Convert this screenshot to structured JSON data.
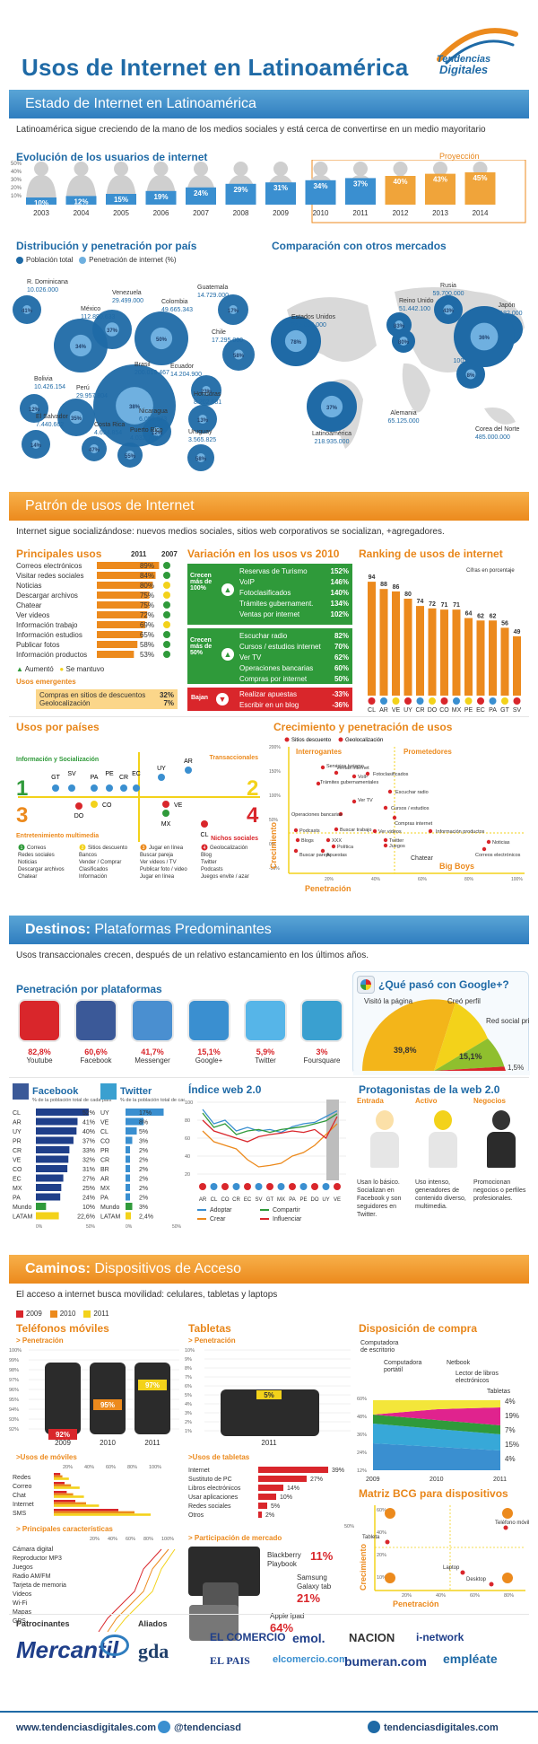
{
  "header": {
    "title_part1": "Usos de Internet en Latinoamérica",
    "brand_line1": "Tendencias",
    "brand_line2": "Digitales"
  },
  "section1": {
    "banner": "Estado de Internet en Latinoamérica",
    "subtitle": "Latinoamérica sigue creciendo de la mano de los medios sociales y está cerca de convertirse en un medio mayoritario",
    "evolution_title": "Evolución de los usuarios de internet",
    "projection_label": "Proyección",
    "evolution_y_ticks": [
      "50%",
      "40%",
      "30%",
      "20%",
      "10%"
    ],
    "distribution_title": "Distribución y penetración por país",
    "legend_population": "Población total",
    "legend_penetration": "Penetración de internet (%)",
    "comparison_title": "Comparación con otros mercados"
  },
  "chart_data": [
    {
      "type": "bar",
      "title": "Evolución de los usuarios de internet",
      "categories": [
        "2003",
        "2004",
        "2005",
        "2006",
        "2007",
        "2008",
        "2009",
        "2010",
        "2011",
        "2012",
        "2013",
        "2014"
      ],
      "values": [
        10,
        12,
        15,
        19,
        24,
        29,
        31,
        34,
        37,
        40,
        43,
        45
      ],
      "labels": [
        "10%",
        "12%",
        "15%",
        "19%",
        "24%",
        "29%",
        "31%",
        "34%",
        "37%",
        "40%",
        "43%",
        "45%"
      ],
      "projected_from": "2012",
      "ylim": [
        0,
        50
      ]
    },
    {
      "type": "scatter",
      "title": "Distribución y penetración por país",
      "countries": [
        {
          "name": "R. Dominicana",
          "population": "10.026.000",
          "penetration": "41%"
        },
        {
          "name": "México",
          "population": "112.890.633",
          "penetration": "34%"
        },
        {
          "name": "Venezuela",
          "population": "29.499.000",
          "penetration": "37%"
        },
        {
          "name": "Colombia",
          "population": "49.665.343",
          "penetration": "50%"
        },
        {
          "name": "Guatemala",
          "population": "14.729.000",
          "penetration": "17%"
        },
        {
          "name": "Chile",
          "population": "17.295.000",
          "penetration": "58%"
        },
        {
          "name": "Brasil",
          "population": "200.019.467",
          "penetration": "38%"
        },
        {
          "name": "Ecuador",
          "population": "14.204.900",
          "penetration": "23%"
        },
        {
          "name": "Bolivia",
          "population": "10.426.154",
          "penetration": "12%"
        },
        {
          "name": "Perú",
          "population": "29.957.804",
          "penetration": "35%"
        },
        {
          "name": "Honduras",
          "population": "8.202.681",
          "penetration": "13%"
        },
        {
          "name": "Nicaragua",
          "population": "6.050.373",
          "penetration": "12%"
        },
        {
          "name": "El Salvador",
          "population": "7.440.662",
          "penetration": "14%"
        },
        {
          "name": "Costa Rica",
          "population": "4.694.854",
          "penetration": "47%"
        },
        {
          "name": "Puerto Rico",
          "population": "4.032.707",
          "penetration": "55%"
        },
        {
          "name": "Uruguay",
          "population": "3.565.825",
          "penetration": "58%"
        }
      ]
    },
    {
      "type": "scatter",
      "title": "Comparación con otros mercados",
      "markets": [
        {
          "name": "Estados Unidos",
          "population": "245.000.000",
          "penetration": "78%"
        },
        {
          "name": "Reino Unido",
          "population": "51.442.100",
          "penetration": "83%"
        },
        {
          "name": "Rusia",
          "population": "59.700.000",
          "penetration": "43%"
        },
        {
          "name": "Japón",
          "population": "99.182.000",
          "penetration": "78%"
        },
        {
          "name": "Alemania",
          "population": "65.125.000",
          "penetration": "80%"
        },
        {
          "name": "India",
          "population": "100.000.000",
          "penetration": "8%"
        },
        {
          "name": "Corea del Norte",
          "population": "485.000.000",
          "penetration": "36%"
        },
        {
          "name": "Latinoamérica",
          "population": "218.935.000",
          "penetration": "37%"
        }
      ]
    },
    {
      "type": "bar",
      "title": "Principales usos",
      "categories": [
        "Correos electrónicos",
        "Visitar redes sociales",
        "Noticias",
        "Descargar archivos",
        "Chatear",
        "Ver videos",
        "Información trabajo",
        "Información estudios",
        "Publicar fotos",
        "Información productos"
      ],
      "values": [
        89,
        84,
        80,
        75,
        75,
        72,
        69,
        65,
        58,
        53
      ],
      "labels": [
        "89%",
        "84%",
        "80%",
        "75%",
        "75%",
        "72%",
        "69%",
        "65%",
        "58%",
        "53%"
      ],
      "xlim": [
        0,
        100
      ]
    },
    {
      "type": "bar",
      "title": "Ranking de usos de internet",
      "categories": [
        "CL",
        "AR",
        "VE",
        "UY",
        "CR",
        "DO",
        "CO",
        "MX",
        "PE",
        "EC",
        "PA",
        "GT",
        "SV"
      ],
      "values": [
        94,
        88,
        86,
        80,
        74,
        72,
        71,
        71,
        64,
        62,
        62,
        56,
        49
      ],
      "ylim": [
        0,
        100
      ]
    },
    {
      "type": "bar",
      "title": "Penetración de teléfonos móviles",
      "categories": [
        "2009",
        "2010",
        "2011"
      ],
      "values": [
        92,
        95,
        97
      ],
      "labels": [
        "92%",
        "95%",
        "97%"
      ],
      "ylim": [
        92,
        100
      ]
    },
    {
      "type": "bar",
      "title": "Usos de tabletas",
      "categories": [
        "Internet",
        "Sustituto de PC",
        "Libros electrónicos",
        "Usar aplicaciones",
        "Redes sociales",
        "Otros"
      ],
      "values": [
        39,
        27,
        14,
        10,
        5,
        2
      ],
      "labels": [
        "39%",
        "27%",
        "14%",
        "10%",
        "5%",
        "2%"
      ],
      "xlim": [
        0,
        50
      ]
    },
    {
      "type": "pie",
      "title": "¿Qué pasó con Google+?",
      "categories": [
        "Visitó la página",
        "Creó perfil",
        "Red social principal"
      ],
      "values": [
        39.8,
        15.1,
        1.5
      ],
      "labels": [
        "39,8%",
        "15,1%",
        "1,5%"
      ]
    }
  ],
  "section2": {
    "banner": "Patrón de usos de Internet",
    "subtitle": "Internet sigue socializándose: nuevos medios sociales, sitios web corporativos se socializan, +agregadores.",
    "main_uses_title": "Principales usos",
    "year_a": "2011",
    "year_b": "2007",
    "legend_up": "Aumentó",
    "legend_same": "Se mantuvo",
    "emerging_title": "Usos emergentes",
    "emerging": [
      {
        "label": "Compras en sitios de descuentos",
        "value": "32%"
      },
      {
        "label": "Geolocalización",
        "value": "7%"
      }
    ],
    "variation_title": "Variación en los usos vs 2010",
    "growth100_label": "Crecen más de 100%",
    "growth100": [
      {
        "label": "Reservas de Turismo",
        "value": "152%"
      },
      {
        "label": "VoIP",
        "value": "146%"
      },
      {
        "label": "Fotoclasificados",
        "value": "140%"
      },
      {
        "label": "Trámites gubernament.",
        "value": "134%"
      },
      {
        "label": "Ventas por internet",
        "value": "102%"
      }
    ],
    "growth50_label": "Crecen más de 50%",
    "growth50": [
      {
        "label": "Escuchar radio",
        "value": "82%"
      },
      {
        "label": "Cursos / estudios internet",
        "value": "70%"
      },
      {
        "label": "Ver TV",
        "value": "62%"
      },
      {
        "label": "Operaciones bancarias",
        "value": "60%"
      },
      {
        "label": "Compras por internet",
        "value": "50%"
      }
    ],
    "down_label": "Bajan",
    "down": [
      {
        "label": "Realizar apuestas",
        "value": "-33%"
      },
      {
        "label": "Escribir en un blog",
        "value": "-36%"
      }
    ],
    "ranking_title": "Ranking de usos de internet",
    "ranking_note": "Cifras en porcentaje",
    "countries_title": "Usos por países",
    "quad_info": "Información y Socialización",
    "quad_trans": "Transaccionales",
    "quad_ent": "Entretenimiento multimedia",
    "quad_niche": "Nichos sociales",
    "q1": [
      "GT",
      "SV",
      "PA",
      "PE",
      "CR",
      "EC"
    ],
    "q1_extra": [
      "UY",
      "AR"
    ],
    "q3": [
      "DO",
      "CO"
    ],
    "q4": [
      "VE",
      "MX",
      "CL"
    ],
    "q_lists": [
      {
        "num": "1",
        "items": [
          "Correos",
          "Redes sociales",
          "Noticias",
          "Descargar archivos",
          "Chatear"
        ]
      },
      {
        "num": "2",
        "items": [
          "Sitios descuento",
          "Bancos",
          "Vender / Comprar",
          "Clasificados",
          "Información"
        ]
      },
      {
        "num": "3",
        "items": [
          "Jugar en línea",
          "Buscar pareja",
          "Ver videos / TV",
          "Publicar foto / video",
          "Jugar en línea"
        ]
      },
      {
        "num": "4",
        "items": [
          "Geolocalización",
          "Blog",
          "Twitter",
          "Podcasts",
          "Juegos envite / azar"
        ]
      }
    ],
    "growth_pen_title": "Crecimiento y penetración de usos",
    "legend_sitios": "Sitios descuento",
    "legend_geo": "Geolocalización",
    "interrogantes": "Interrogantes",
    "prometedores": "Prometedores",
    "chatear": "Chatear",
    "big_boys": "Big Boys",
    "axis_growth": "Crecimiento",
    "axis_pen": "Penetración",
    "bubbles": [
      "Servicios turismo",
      "Ventas internet",
      "VoIP",
      "Fotoclasificados",
      "Trámites gubernamentales",
      "Escuchar radio",
      "Ver TV",
      "Cursos / estudios",
      "Operaciones bancarias",
      "Compras internet",
      "Podcasts",
      "Buscar trabajo",
      "Ver videos",
      "Información productos",
      "Blogs",
      "XXX",
      "Política",
      "Twitter",
      "Juegos",
      "Noticias",
      "Correos electrónicos",
      "Buscar pareja",
      "Apuestas"
    ],
    "y_ticks": [
      "200%",
      "150%",
      "100%",
      "50%",
      "0%",
      "-50%"
    ],
    "x_ticks": [
      "20%",
      "40%",
      "60%",
      "80%",
      "100%"
    ]
  },
  "section3": {
    "banner_bold": "Destinos:",
    "banner_rest": "Plataformas Predominantes",
    "subtitle": "Usos transaccionales crecen, después de un relativo estancamiento en los últimos años.",
    "platforms_title": "Penetración por plataformas",
    "platforms": [
      {
        "name": "Youtube",
        "value": "82,8%",
        "icon": "youtube-icon"
      },
      {
        "name": "Facebook",
        "value": "60,6%",
        "icon": "facebook-icon"
      },
      {
        "name": "Messenger",
        "value": "41,7%",
        "icon": "messenger-icon"
      },
      {
        "name": "Google+",
        "value": "15,1%",
        "icon": "google-plus-icon"
      },
      {
        "name": "Twitter",
        "value": "5,9%",
        "icon": "twitter-icon"
      },
      {
        "name": "Foursquare",
        "value": "3%",
        "icon": "foursquare-icon"
      }
    ],
    "google_title": "¿Qué pasó con Google+?",
    "google_visited": "Visitó la página",
    "google_profile": "Creó perfil",
    "google_main": "Red social principal",
    "fb_title": "Facebook",
    "fb_sub": "% de la población total de cada país",
    "fb_rows": [
      {
        "c": "CL",
        "v": "52%",
        "n": 52
      },
      {
        "c": "AR",
        "v": "41%",
        "n": 41
      },
      {
        "c": "UY",
        "v": "40%",
        "n": 40
      },
      {
        "c": "PR",
        "v": "37%",
        "n": 37
      },
      {
        "c": "CR",
        "v": "33%",
        "n": 33
      },
      {
        "c": "VE",
        "v": "32%",
        "n": 32
      },
      {
        "c": "CO",
        "v": "31%",
        "n": 31
      },
      {
        "c": "EC",
        "v": "27%",
        "n": 27
      },
      {
        "c": "MX",
        "v": "25%",
        "n": 25
      },
      {
        "c": "PA",
        "v": "24%",
        "n": 24
      },
      {
        "c": "Mundo",
        "v": "10%",
        "n": 10
      },
      {
        "c": "LATAM",
        "v": "22,6%",
        "n": 22.6
      }
    ],
    "tw_title": "Twitter",
    "tw_sub": "% de la población total de cada país",
    "tw_rows": [
      {
        "c": "UY",
        "v": "17%",
        "n": 17
      },
      {
        "c": "VE",
        "v": "8%",
        "n": 8
      },
      {
        "c": "CL",
        "v": "5%",
        "n": 5
      },
      {
        "c": "CO",
        "v": "3%",
        "n": 3
      },
      {
        "c": "PR",
        "v": "2%",
        "n": 2
      },
      {
        "c": "CR",
        "v": "2%",
        "n": 2
      },
      {
        "c": "BR",
        "v": "2%",
        "n": 2
      },
      {
        "c": "AR",
        "v": "2%",
        "n": 2
      },
      {
        "c": "MX",
        "v": "2%",
        "n": 2
      },
      {
        "c": "PA",
        "v": "2%",
        "n": 2
      },
      {
        "c": "Mundo",
        "v": "3%",
        "n": 3
      },
      {
        "c": "LATAM",
        "v": "2,4%",
        "n": 2.4
      }
    ],
    "axis_0": "0%",
    "axis_50": "50%",
    "web20_title": "Índice web 2.0",
    "web20_countries": [
      "AR",
      "CL",
      "CO",
      "CR",
      "EC",
      "SV",
      "GT",
      "MX",
      "PA",
      "PE",
      "DO",
      "UY",
      "VE"
    ],
    "web20_y": [
      "100",
      "80",
      "60",
      "40",
      "20"
    ],
    "web20_legend": [
      "Adoptar",
      "Compartir",
      "Crear",
      "Influenciar"
    ],
    "protag_title": "Protagonistas de la web 2.0",
    "protag": [
      {
        "head": "Entrada",
        "text": "Usan lo básico. Socializan en Facebook y son seguidores en Twitter."
      },
      {
        "head": "Activo",
        "text": "Uso intenso, generadores de contenido diverso, multimedia."
      },
      {
        "head": "Negocios",
        "text": "Promocionan negocios o perfiles profesionales."
      }
    ]
  },
  "section4": {
    "banner_bold": "Caminos:",
    "banner_rest": "Dispositivos de Acceso",
    "subtitle": "El acceso a internet busca movilidad: celulares, tabletas y laptops",
    "legend_years": [
      "2009",
      "2010",
      "2011"
    ],
    "mobiles_title": "Teléfonos móviles",
    "penetration": "> Penetración",
    "mobile_y": [
      "100%",
      "99%",
      "98%",
      "97%",
      "96%",
      "95%",
      "94%",
      "93%",
      "92%"
    ],
    "mobile_uses_title": ">Usos de móviles",
    "mobile_uses": [
      "Redes",
      "Correo",
      "Chat",
      "Internet",
      "SMS"
    ],
    "mobile_pct": [
      "20%",
      "40%",
      "60%",
      "80%",
      "100%"
    ],
    "features_title": "> Principales características",
    "features": [
      "Cámara digital",
      "Reproductor MP3",
      "Juegos",
      "Radio AM/FM",
      "Tarjeta de memoria",
      "Videos",
      "Wi-Fi",
      "Mapas",
      "GPS"
    ],
    "tablets_title": "Tabletas",
    "tablet_label": "5%",
    "tablet_year": "2011",
    "tablet_y": [
      "10%",
      "9%",
      "8%",
      "7%",
      "6%",
      "5%",
      "4%",
      "3%",
      "2%",
      "1%"
    ],
    "tablet_uses_title": ">Usos de tabletas",
    "tablet_axis_end": "50%",
    "market_title": "> Participación de mercado",
    "market": [
      {
        "name": "Blackberry Playbook",
        "value": "11%"
      },
      {
        "name": "Samsung Galaxy tab",
        "value": "21%"
      },
      {
        "name": "Apple Ipad",
        "value": "64%"
      }
    ],
    "purchase_title": "Disposición de compra",
    "purchase_labels": [
      "Computadora de escritorio",
      "Computadora portátil",
      "Netbook",
      "Lector de libros electrónicos",
      "Tabletas"
    ],
    "purchase_right": [
      "4%",
      "19%",
      "7%",
      "15%",
      "4%"
    ],
    "purchase_y": [
      "60%",
      "48%",
      "36%",
      "24%",
      "12%"
    ],
    "purchase_x": [
      "2009",
      "2010",
      "2011"
    ],
    "bcg_title": "Matriz BCG para dispositivos",
    "bcg_items": [
      "Tableta",
      "Teléfono móvil",
      "Laptop",
      "Desktop"
    ],
    "bcg_y": [
      "60%",
      "40%",
      "20%",
      "10%"
    ],
    "bcg_x": [
      "20%",
      "40%",
      "60%",
      "80%"
    ],
    "bcg_axis_y": "Crecimiento",
    "bcg_axis_x": "Penetración"
  },
  "footer": {
    "sponsors_title": "Patrocinantes",
    "allies_title": "Aliados",
    "sponsor": "Mercantil",
    "allies": [
      "gda",
      "EL COMERCIO",
      "emol.",
      "NACION",
      "i-network",
      "EL PAIS",
      "elcomercio.com",
      "bumeran.com",
      "empléate"
    ],
    "url": "www.tendenciasdigitales.com",
    "twitter": "@tendenciasd",
    "domain": "tendenciasdigitales.com"
  },
  "colors": {
    "blue": "#1f6aa6",
    "light_blue": "#3a8fd0",
    "orange": "#ec8a1d",
    "green": "#2f9a3a",
    "red": "#d9262b",
    "yellow": "#f3d21a",
    "grey": "#bdbdbd"
  }
}
